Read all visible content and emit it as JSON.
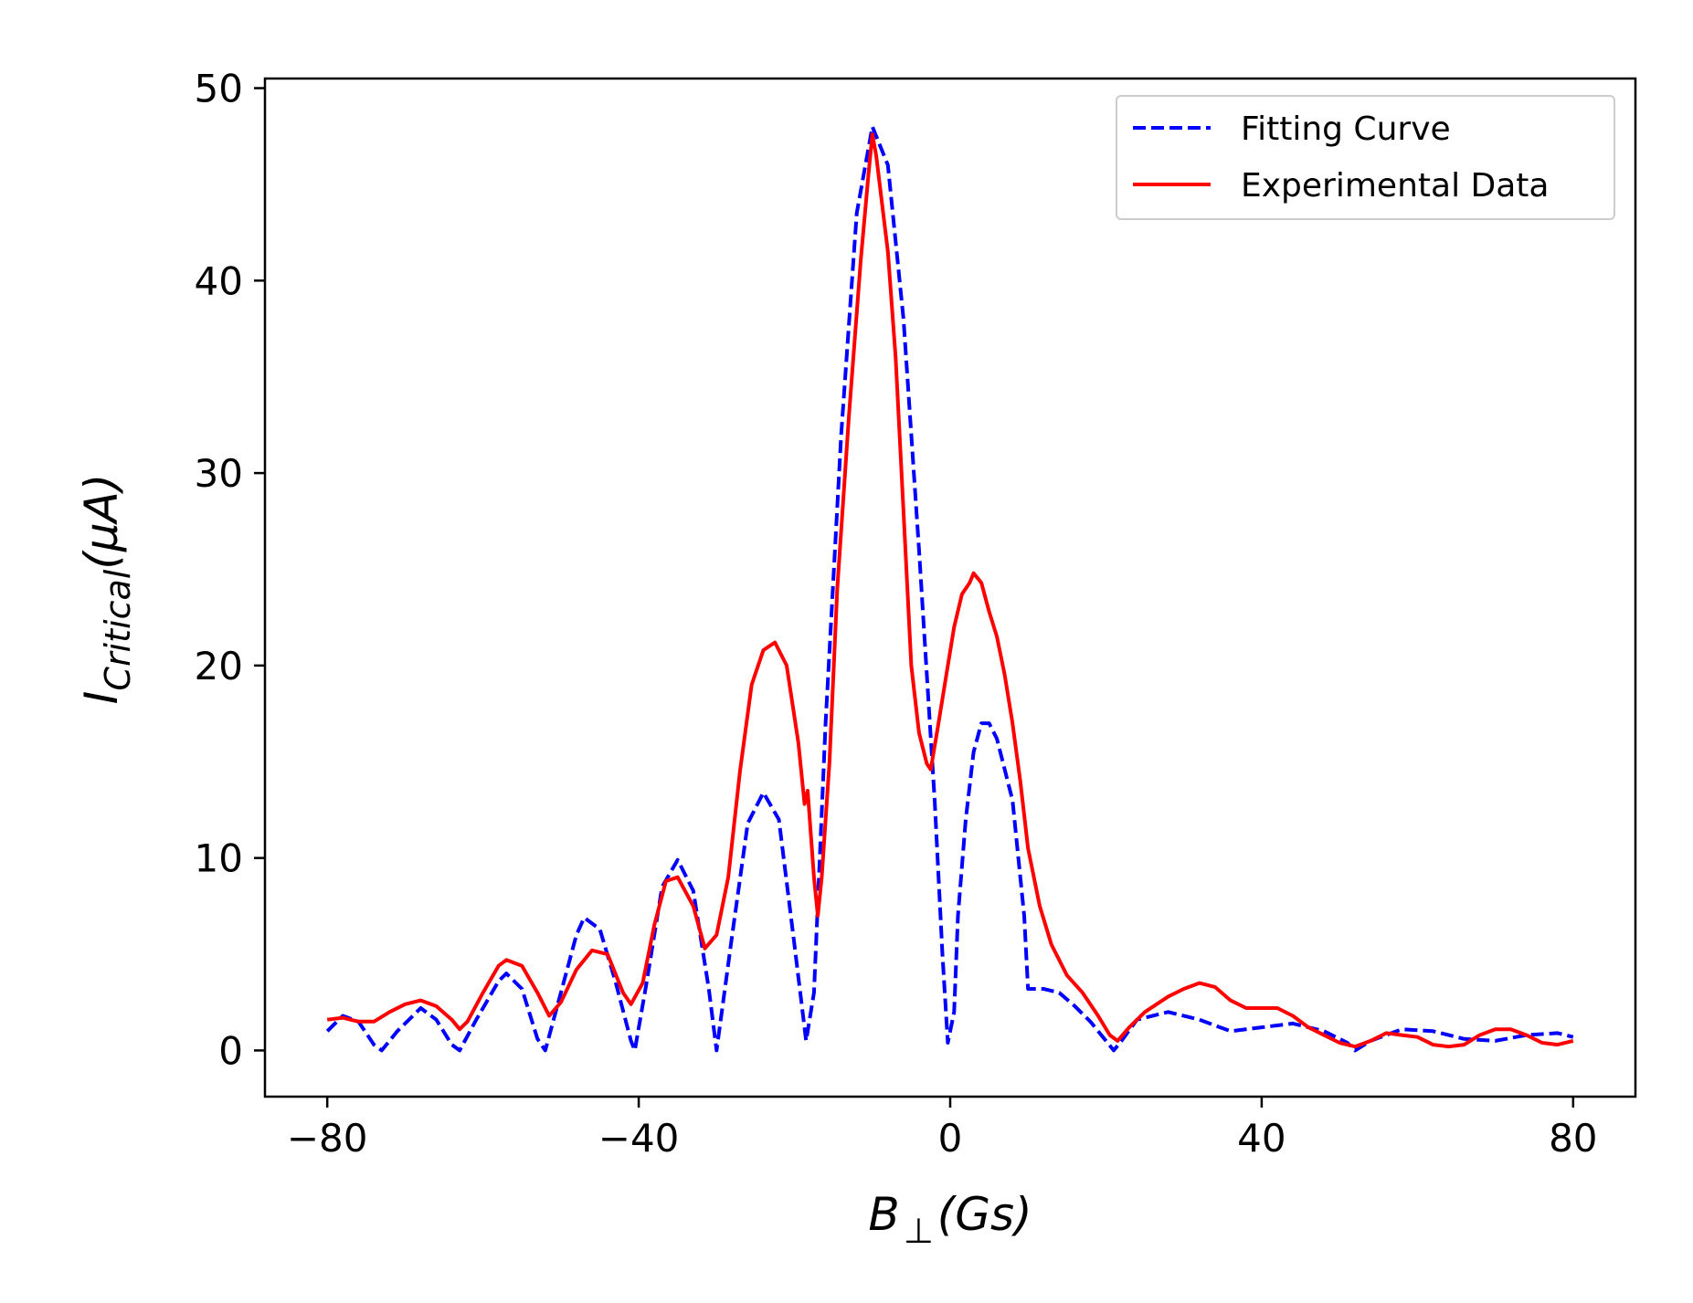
{
  "chart_data": {
    "type": "line",
    "title": "",
    "xlabel": {
      "main": "B",
      "sub": "⊥",
      "rest": "(Gs)"
    },
    "ylabel": {
      "main": "I",
      "sub": "Critical",
      "rest": "(μA)"
    },
    "xlim": [
      -88,
      88
    ],
    "ylim": [
      -2.4,
      50.5
    ],
    "x_ticks": [
      -80,
      -40,
      0,
      40,
      80
    ],
    "x_tick_labels": [
      "−80",
      "−40",
      "0",
      "40",
      "80"
    ],
    "y_ticks": [
      0,
      10,
      20,
      30,
      40,
      50
    ],
    "y_tick_labels": [
      "0",
      "10",
      "20",
      "30",
      "40",
      "50"
    ],
    "grid": false,
    "legend_position": "top-right",
    "series": [
      {
        "name": "Fitting Curve",
        "color": "#0000ff",
        "style": "dashed",
        "points": [
          [
            -80,
            1.0
          ],
          [
            -78,
            1.8
          ],
          [
            -76,
            1.5
          ],
          [
            -74,
            0.3
          ],
          [
            -73,
            0.0
          ],
          [
            -71,
            1.0
          ],
          [
            -68,
            2.2
          ],
          [
            -66,
            1.6
          ],
          [
            -64,
            0.3
          ],
          [
            -63,
            0.0
          ],
          [
            -61,
            1.5
          ],
          [
            -58,
            3.6
          ],
          [
            -57,
            4.0
          ],
          [
            -55,
            3.2
          ],
          [
            -53,
            0.6
          ],
          [
            -52,
            0.0
          ],
          [
            -50,
            3.0
          ],
          [
            -48,
            6.0
          ],
          [
            -47,
            6.9
          ],
          [
            -45,
            6.3
          ],
          [
            -43,
            3.6
          ],
          [
            -41,
            0.5
          ],
          [
            -40.5,
            0.0
          ],
          [
            -39,
            3.5
          ],
          [
            -37,
            8.5
          ],
          [
            -35,
            9.9
          ],
          [
            -33,
            8.3
          ],
          [
            -31,
            3.2
          ],
          [
            -30,
            0.0
          ],
          [
            -28,
            6.0
          ],
          [
            -26,
            11.8
          ],
          [
            -24,
            13.4
          ],
          [
            -22,
            12.0
          ],
          [
            -20,
            5.5
          ],
          [
            -18.5,
            0.5
          ],
          [
            -17.5,
            3.0
          ],
          [
            -16,
            17.0
          ],
          [
            -14,
            32.0
          ],
          [
            -12,
            43.5
          ],
          [
            -10,
            48.0
          ],
          [
            -8,
            46.0
          ],
          [
            -6,
            38.0
          ],
          [
            -4,
            26.0
          ],
          [
            -2,
            13.0
          ],
          [
            -1,
            5.0
          ],
          [
            -0.3,
            0.4
          ],
          [
            0.5,
            2.0
          ],
          [
            1,
            7.0
          ],
          [
            2,
            12.0
          ],
          [
            3,
            15.5
          ],
          [
            4,
            17.0
          ],
          [
            5,
            17.0
          ],
          [
            6,
            16.2
          ],
          [
            8,
            13.0
          ],
          [
            9.5,
            7.0
          ],
          [
            10,
            3.2
          ],
          [
            12,
            3.2
          ],
          [
            14,
            3.0
          ],
          [
            16,
            2.3
          ],
          [
            18,
            1.5
          ],
          [
            20,
            0.5
          ],
          [
            21,
            0.0
          ],
          [
            22,
            0.5
          ],
          [
            24,
            1.6
          ],
          [
            28,
            2.0
          ],
          [
            32,
            1.6
          ],
          [
            36,
            1.0
          ],
          [
            40,
            1.2
          ],
          [
            44,
            1.4
          ],
          [
            48,
            1.0
          ],
          [
            51,
            0.4
          ],
          [
            52,
            0.0
          ],
          [
            54,
            0.5
          ],
          [
            58,
            1.1
          ],
          [
            62,
            1.0
          ],
          [
            66,
            0.6
          ],
          [
            70,
            0.5
          ],
          [
            74,
            0.8
          ],
          [
            78,
            0.9
          ],
          [
            80,
            0.7
          ]
        ]
      },
      {
        "name": "Experimental Data",
        "color": "#ff0000",
        "style": "solid",
        "points": [
          [
            -80,
            1.6
          ],
          [
            -78,
            1.7
          ],
          [
            -76,
            1.5
          ],
          [
            -74,
            1.5
          ],
          [
            -72,
            2.0
          ],
          [
            -70,
            2.4
          ],
          [
            -68,
            2.6
          ],
          [
            -66,
            2.3
          ],
          [
            -64,
            1.6
          ],
          [
            -63,
            1.1
          ],
          [
            -62,
            1.5
          ],
          [
            -60,
            3.0
          ],
          [
            -58,
            4.4
          ],
          [
            -57,
            4.7
          ],
          [
            -55,
            4.4
          ],
          [
            -53,
            3.0
          ],
          [
            -51.5,
            1.8
          ],
          [
            -50,
            2.5
          ],
          [
            -48,
            4.2
          ],
          [
            -46,
            5.2
          ],
          [
            -44,
            5.0
          ],
          [
            -42,
            3.0
          ],
          [
            -41,
            2.4
          ],
          [
            -39.5,
            3.5
          ],
          [
            -38,
            6.5
          ],
          [
            -36.5,
            8.8
          ],
          [
            -35,
            9.0
          ],
          [
            -33,
            7.5
          ],
          [
            -31.5,
            5.3
          ],
          [
            -30,
            6.0
          ],
          [
            -28.5,
            9.0
          ],
          [
            -27,
            14.5
          ],
          [
            -25.5,
            19.0
          ],
          [
            -24,
            20.8
          ],
          [
            -22.5,
            21.2
          ],
          [
            -21,
            20.0
          ],
          [
            -19.5,
            16.0
          ],
          [
            -18.7,
            12.8
          ],
          [
            -18.3,
            13.5
          ],
          [
            -17.5,
            9.0
          ],
          [
            -17,
            7.0
          ],
          [
            -16.5,
            9.0
          ],
          [
            -15.5,
            15.0
          ],
          [
            -14.5,
            24.0
          ],
          [
            -13,
            33.0
          ],
          [
            -11.5,
            41.0
          ],
          [
            -10.5,
            45.5
          ],
          [
            -10,
            47.6
          ],
          [
            -9.5,
            46.5
          ],
          [
            -8,
            41.5
          ],
          [
            -7,
            36.0
          ],
          [
            -6,
            28.0
          ],
          [
            -5,
            20.0
          ],
          [
            -4,
            16.5
          ],
          [
            -3,
            14.9
          ],
          [
            -2.5,
            14.6
          ],
          [
            -1.5,
            17.0
          ],
          [
            -0.5,
            19.5
          ],
          [
            0.5,
            22.0
          ],
          [
            1.5,
            23.7
          ],
          [
            2.5,
            24.3
          ],
          [
            3,
            24.8
          ],
          [
            4,
            24.3
          ],
          [
            5,
            22.8
          ],
          [
            6,
            21.5
          ],
          [
            7,
            19.5
          ],
          [
            8,
            17.0
          ],
          [
            9,
            14.0
          ],
          [
            10,
            10.5
          ],
          [
            11.5,
            7.5
          ],
          [
            13,
            5.5
          ],
          [
            15,
            3.9
          ],
          [
            17,
            3.0
          ],
          [
            19,
            1.8
          ],
          [
            20.5,
            0.8
          ],
          [
            21.5,
            0.5
          ],
          [
            23,
            1.2
          ],
          [
            25,
            2.0
          ],
          [
            28,
            2.8
          ],
          [
            30,
            3.2
          ],
          [
            32,
            3.5
          ],
          [
            34,
            3.3
          ],
          [
            36,
            2.6
          ],
          [
            38,
            2.2
          ],
          [
            40,
            2.2
          ],
          [
            42,
            2.2
          ],
          [
            44,
            1.8
          ],
          [
            46,
            1.2
          ],
          [
            48,
            0.8
          ],
          [
            50,
            0.4
          ],
          [
            52,
            0.2
          ],
          [
            54,
            0.5
          ],
          [
            56,
            0.9
          ],
          [
            58,
            0.8
          ],
          [
            60,
            0.7
          ],
          [
            62,
            0.3
          ],
          [
            64,
            0.2
          ],
          [
            66,
            0.3
          ],
          [
            68,
            0.8
          ],
          [
            70,
            1.1
          ],
          [
            72,
            1.1
          ],
          [
            74,
            0.8
          ],
          [
            76,
            0.4
          ],
          [
            78,
            0.3
          ],
          [
            80,
            0.5
          ]
        ]
      }
    ]
  }
}
